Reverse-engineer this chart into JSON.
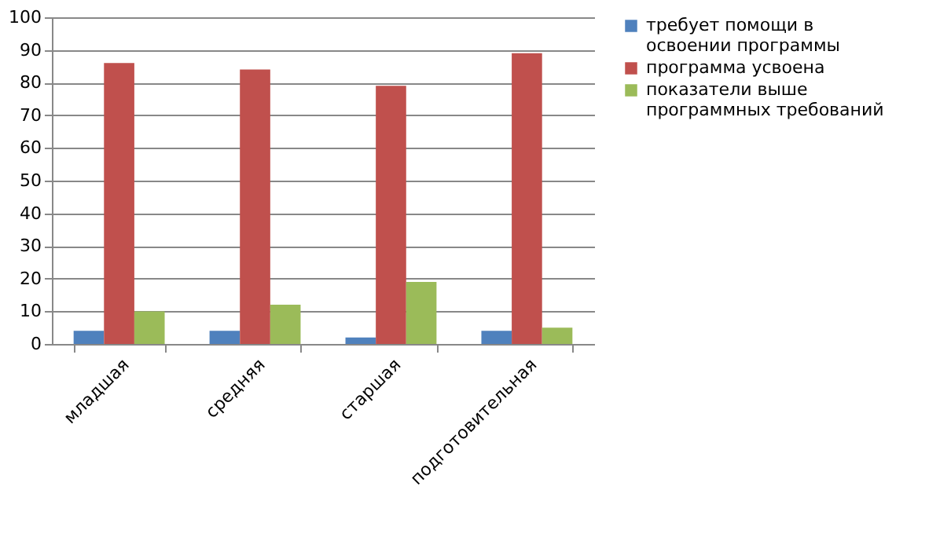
{
  "chart_data": {
    "type": "bar",
    "categories": [
      "младшая",
      "средняя",
      "старшая",
      "подготовительная"
    ],
    "series": [
      {
        "name": "требует помощи в освоении программы",
        "color": "#4f81bd",
        "values": [
          4,
          4,
          2,
          4
        ]
      },
      {
        "name": "программа усвоена",
        "color": "#c0504d",
        "values": [
          86,
          84,
          79,
          89
        ]
      },
      {
        "name": "показатели выше программных требований",
        "color": "#9bbb59",
        "values": [
          10,
          12,
          19,
          5
        ]
      }
    ],
    "ylim": [
      0,
      100
    ],
    "yticks": [
      0,
      10,
      20,
      30,
      40,
      50,
      60,
      70,
      80,
      90,
      100
    ],
    "grid": "y",
    "legend": "right"
  }
}
